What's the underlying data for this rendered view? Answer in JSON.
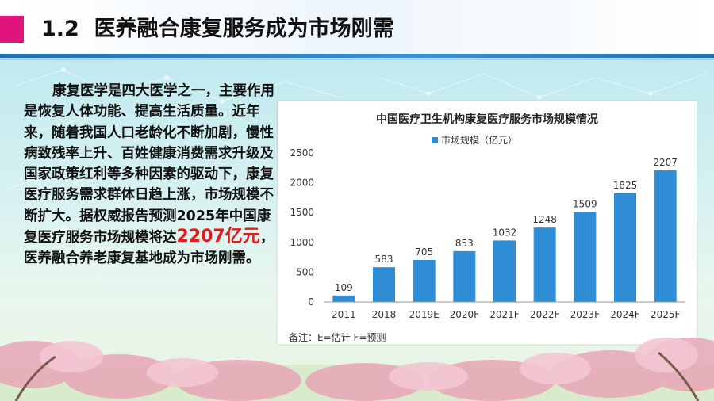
{
  "slide": {
    "section_number": "1.2",
    "title": "医养融合康复服务成为市场刚需"
  },
  "body": {
    "text_before": "康复医学是四大医学之一，主要作用是恢复人体功能、提高生活质量。近年来，随着我国人口老龄化不断加剧，慢性病致残率上升、百姓健康消费需求升级及国家政策红利等多种因素的驱动下，康复医疗服务需求群体日趋上涨，市场规模不断扩大。据权威报告预测2025年中国康复医疗服务市场规模将达",
    "highlight": "2207亿元",
    "text_after": "，医养融合养老康复基地成为市场刚需。"
  },
  "colors": {
    "accent_magenta": "#e0147b",
    "bar_blue": "#2f8dd6",
    "highlight_red": "#e01c1c",
    "title_blue": "#1f6fb0"
  },
  "chart_data": {
    "type": "bar",
    "title": "中国医疗卫生机构康复医疗服务市场规模情况",
    "categories": [
      "2011",
      "2018",
      "2019E",
      "2020F",
      "2021F",
      "2022F",
      "2023F",
      "2024F",
      "2025F"
    ],
    "series": [
      {
        "name": "市场规模（亿元）",
        "values": [
          109,
          583,
          705,
          853,
          1032,
          1248,
          1509,
          1825,
          2207
        ]
      }
    ],
    "ylim": [
      0,
      2500
    ],
    "yticks": [
      0,
      500,
      1000,
      1500,
      2000,
      2500
    ],
    "grid": false,
    "legend_position": "top-center",
    "note": "备注：E=估计 F=预测"
  }
}
